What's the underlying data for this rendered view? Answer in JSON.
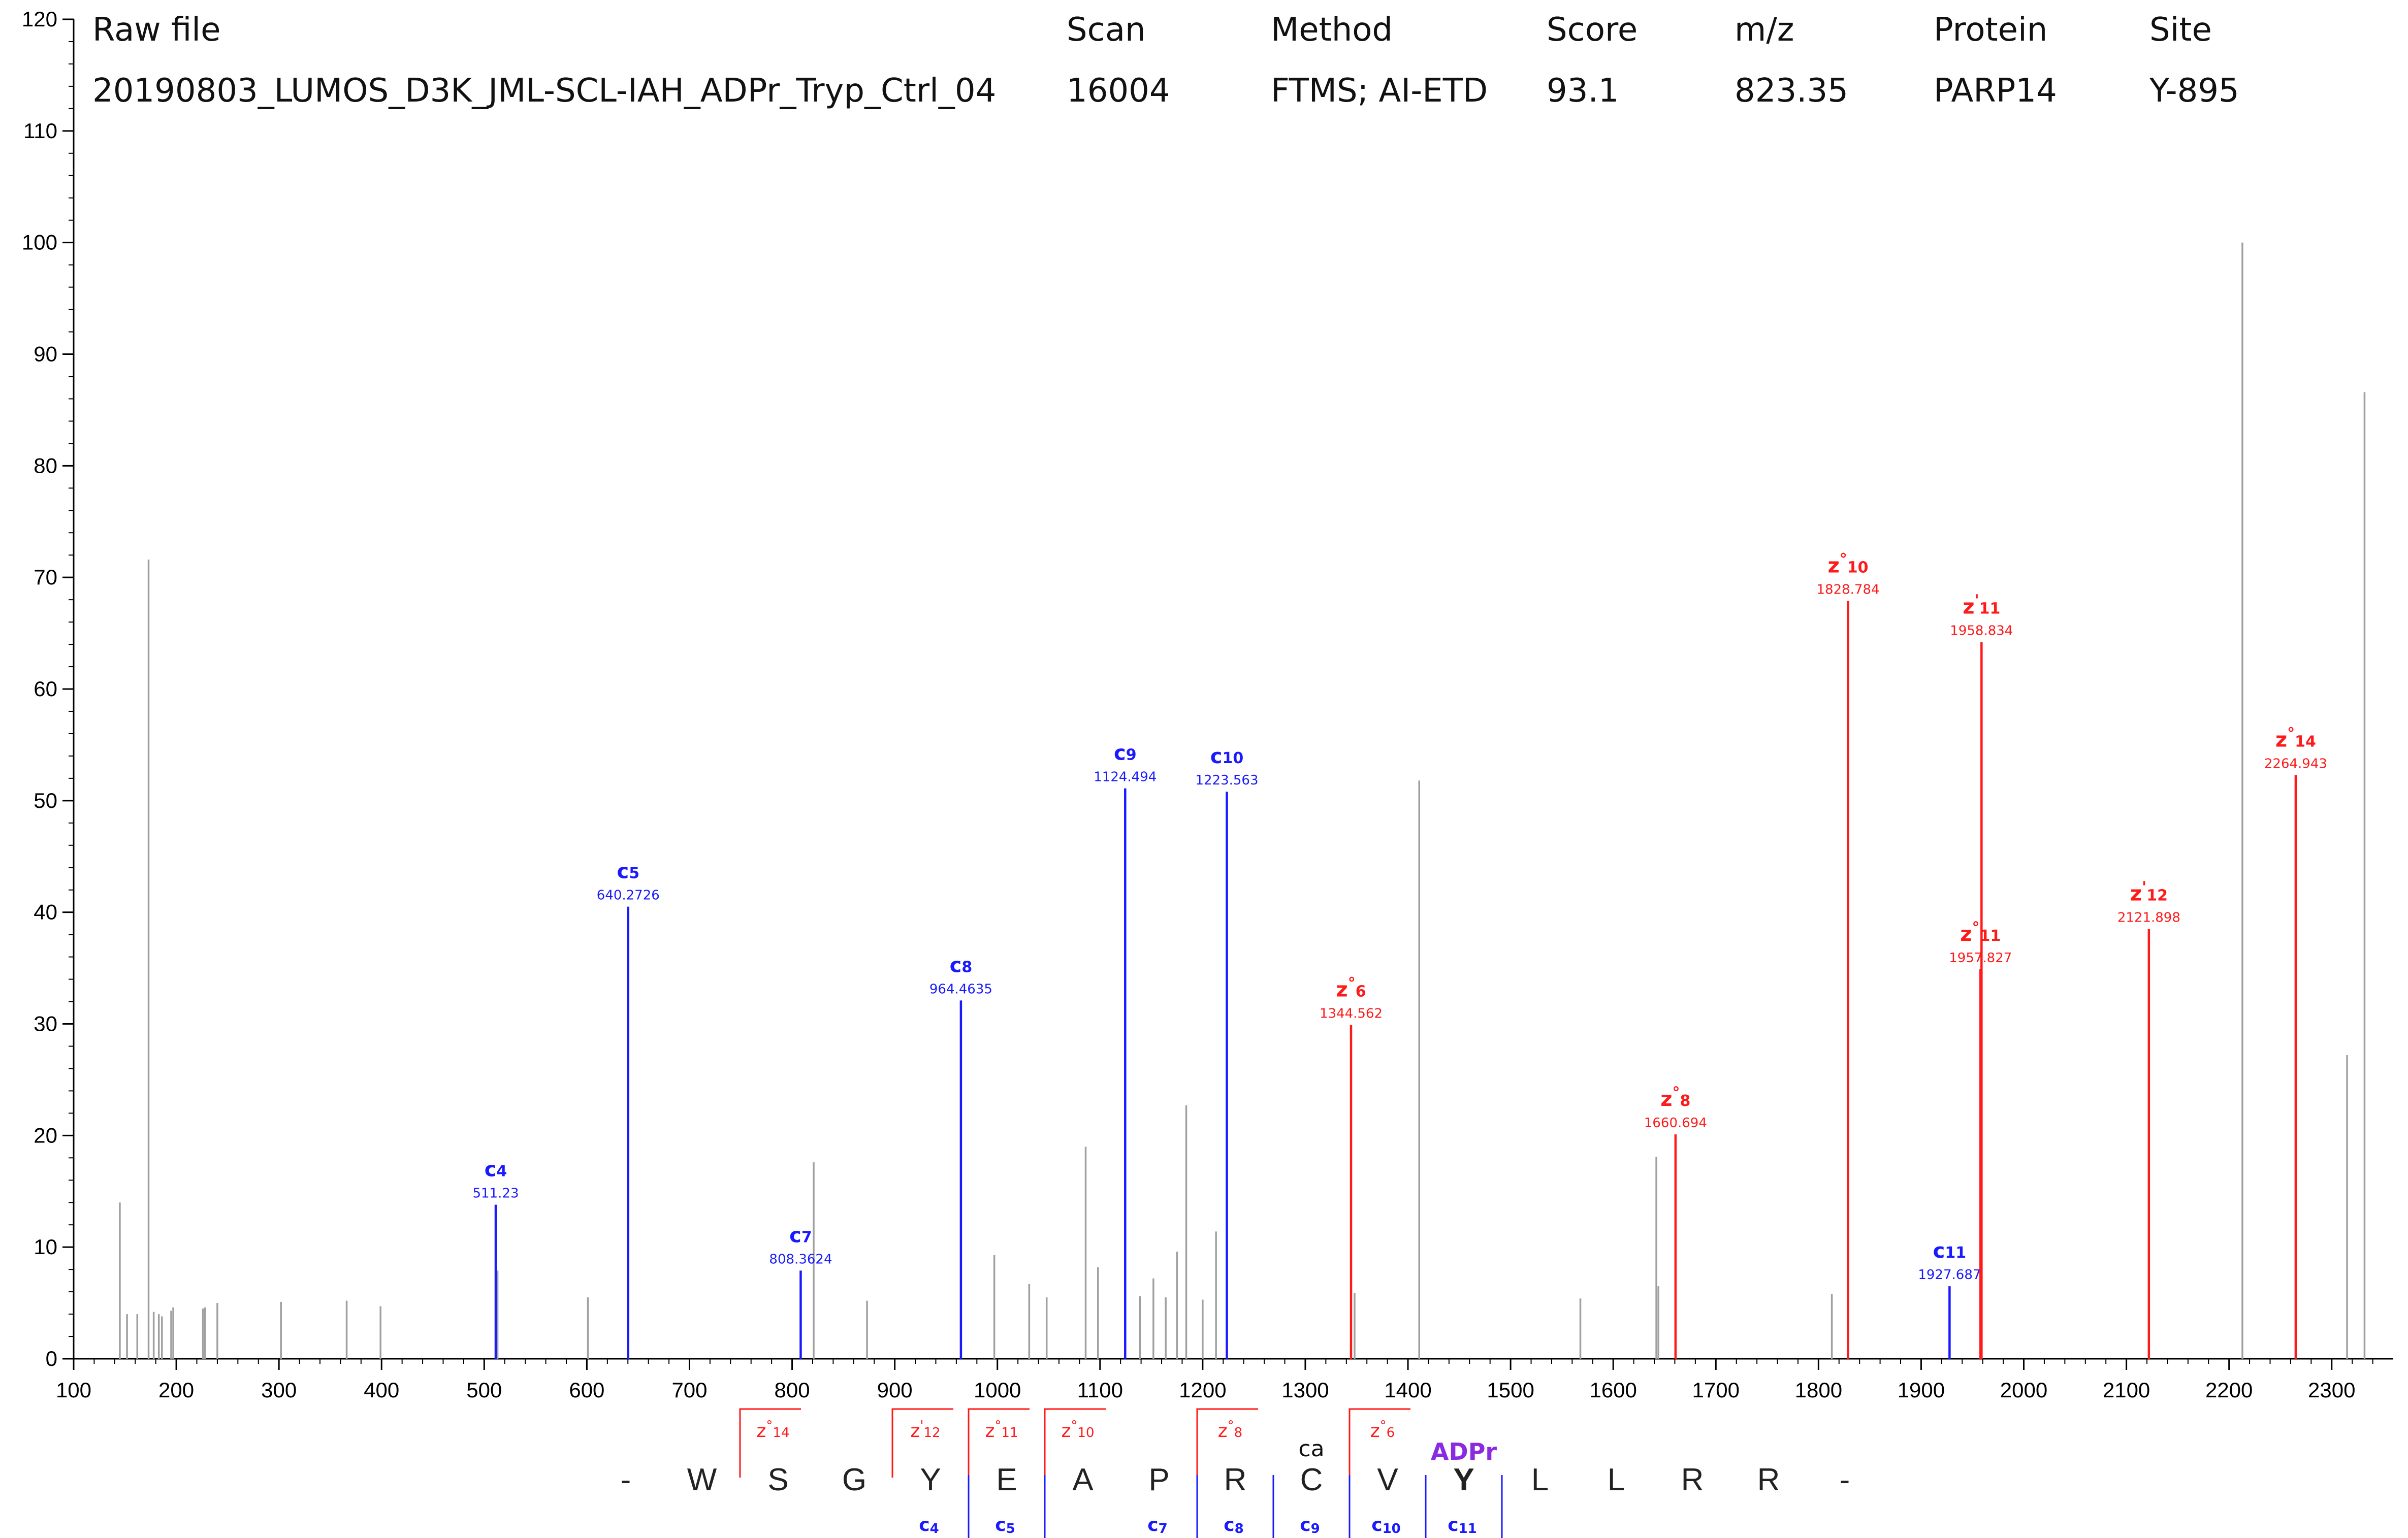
{
  "header": {
    "columns": [
      {
        "label": "Raw file",
        "value": "20190803_LUMOS_D3K_JML-SCL-IAH_ADPr_Tryp_Ctrl_04"
      },
      {
        "label": "Scan",
        "value": "16004"
      },
      {
        "label": "Method",
        "value": "FTMS; AI-ETD"
      },
      {
        "label": "Score",
        "value": "93.1"
      },
      {
        "label": "m/z",
        "value": "823.35"
      },
      {
        "label": "Protein",
        "value": "PARP14"
      },
      {
        "label": "Site",
        "value": "Y-895"
      }
    ]
  },
  "colors": {
    "c_ion": "#1a1aff",
    "z_ion": "#ff1a1a",
    "unassigned": "#a0a0a0",
    "adpr": "#8a2be2",
    "axis": "#000000"
  },
  "chart_data": {
    "type": "bar",
    "xlim": [
      100,
      2360
    ],
    "ylim": [
      0,
      120
    ],
    "xticks": [
      100,
      200,
      300,
      400,
      500,
      600,
      700,
      800,
      900,
      1000,
      1100,
      1200,
      1300,
      1400,
      1500,
      1600,
      1700,
      1800,
      1900,
      2000,
      2100,
      2200,
      2300
    ],
    "yticks": [
      0,
      10,
      20,
      30,
      40,
      50,
      60,
      70,
      80,
      90,
      100,
      110,
      120
    ],
    "grid": false,
    "unassigned_peaks": [
      [
        145,
        14
      ],
      [
        152,
        4
      ],
      [
        162,
        4
      ],
      [
        173,
        71.6
      ],
      [
        178,
        4.2
      ],
      [
        183,
        4
      ],
      [
        186,
        3.8
      ],
      [
        195,
        4.3
      ],
      [
        197,
        4.6
      ],
      [
        226,
        4.5
      ],
      [
        228,
        4.6
      ],
      [
        240,
        5
      ],
      [
        302,
        5.1
      ],
      [
        366,
        5.2
      ],
      [
        399,
        4.7
      ],
      [
        513,
        7.9
      ],
      [
        601,
        5.5
      ],
      [
        640,
        6
      ],
      [
        821,
        17.6
      ],
      [
        873,
        5.2
      ],
      [
        997,
        9.3
      ],
      [
        1031,
        6.7
      ],
      [
        1048,
        5.5
      ],
      [
        1086,
        19
      ],
      [
        1098,
        8.2
      ],
      [
        1139,
        5.6
      ],
      [
        1152,
        7.2
      ],
      [
        1164,
        5.5
      ],
      [
        1175,
        9.6
      ],
      [
        1184,
        22.7
      ],
      [
        1200,
        5.3
      ],
      [
        1213,
        11.4
      ],
      [
        1348,
        5.9
      ],
      [
        1411,
        51.8
      ],
      [
        1568,
        5.4
      ],
      [
        1642,
        18.1
      ],
      [
        1644,
        6.5
      ],
      [
        1813,
        5.8
      ],
      [
        2213,
        100
      ],
      [
        2315,
        27.2
      ],
      [
        2332,
        86.6
      ]
    ],
    "ions": [
      {
        "series": "c",
        "name": "c",
        "sub": "4",
        "sup": "",
        "mz": 511.23,
        "mz_label": "511.23",
        "intensity": 13.8
      },
      {
        "series": "c",
        "name": "c",
        "sub": "5",
        "sup": "",
        "mz": 640.2726,
        "mz_label": "640.2726",
        "intensity": 40.5
      },
      {
        "series": "c",
        "name": "c",
        "sub": "7",
        "sup": "",
        "mz": 808.3624,
        "mz_label": "808.3624",
        "intensity": 7.9
      },
      {
        "series": "c",
        "name": "c",
        "sub": "8",
        "sup": "",
        "mz": 964.4635,
        "mz_label": "964.4635",
        "intensity": 32.1
      },
      {
        "series": "c",
        "name": "c",
        "sub": "9",
        "sup": "",
        "mz": 1124.494,
        "mz_label": "1124.494",
        "intensity": 51.1
      },
      {
        "series": "c",
        "name": "c",
        "sub": "10",
        "sup": "",
        "mz": 1223.563,
        "mz_label": "1223.563",
        "intensity": 50.8
      },
      {
        "series": "c",
        "name": "c",
        "sub": "11",
        "sup": "",
        "mz": 1927.687,
        "mz_label": "1927.687",
        "intensity": 6.5
      },
      {
        "series": "z",
        "name": "z",
        "sub": "6",
        "sup": "°",
        "mz": 1344.562,
        "mz_label": "1344.562",
        "intensity": 29.9
      },
      {
        "series": "z",
        "name": "z",
        "sub": "8",
        "sup": "°",
        "mz": 1660.694,
        "mz_label": "1660.694",
        "intensity": 20.1
      },
      {
        "series": "z",
        "name": "z",
        "sub": "10",
        "sup": "°",
        "mz": 1828.784,
        "mz_label": "1828.784",
        "intensity": 67.9
      },
      {
        "series": "z",
        "name": "z",
        "sub": "11",
        "sup": "'",
        "mz": 1958.834,
        "mz_label": "1958.834",
        "intensity": 64.2
      },
      {
        "series": "z",
        "name": "z",
        "sub": "11",
        "sup": "°",
        "mz": 1957.827,
        "mz_label": "1957.827",
        "intensity": 34.9
      },
      {
        "series": "z",
        "name": "z",
        "sub": "12",
        "sup": "'",
        "mz": 2121.898,
        "mz_label": "2121.898",
        "intensity": 38.5
      },
      {
        "series": "z",
        "name": "z",
        "sub": "14",
        "sup": "°",
        "mz": 2264.943,
        "mz_label": "2264.943",
        "intensity": 52.3
      }
    ]
  },
  "sequence": {
    "residues": [
      "-",
      "W",
      "S",
      "G",
      "Y",
      "E",
      "A",
      "P",
      "R",
      "C",
      "V",
      "Y",
      "L",
      "L",
      "R",
      "R",
      "-"
    ],
    "modified_index": 11,
    "mod_label": "ADPr",
    "cys_index": 9,
    "cys_label": "ca",
    "z_fragments": [
      {
        "after": 1,
        "label": "z",
        "sup": "°",
        "sub": "14"
      },
      {
        "after": 3,
        "label": "z",
        "sup": "'",
        "sub": "12"
      },
      {
        "after": 4,
        "label": "z",
        "sup": "°",
        "sub": "11"
      },
      {
        "after": 5,
        "label": "z",
        "sup": "°",
        "sub": "10"
      },
      {
        "after": 7,
        "label": "z",
        "sup": "°",
        "sub": "8"
      },
      {
        "after": 9,
        "label": "z",
        "sup": "°",
        "sub": "6"
      }
    ],
    "c_fragments": [
      {
        "after": 4,
        "label": "c",
        "sub": "4"
      },
      {
        "after": 5,
        "label": "c",
        "sub": "5"
      },
      {
        "after": 7,
        "label": "c",
        "sub": "7"
      },
      {
        "after": 8,
        "label": "c",
        "sub": "8"
      },
      {
        "after": 9,
        "label": "c",
        "sub": "9"
      },
      {
        "after": 10,
        "label": "c",
        "sub": "10"
      },
      {
        "after": 11,
        "label": "c",
        "sub": "11"
      }
    ]
  }
}
